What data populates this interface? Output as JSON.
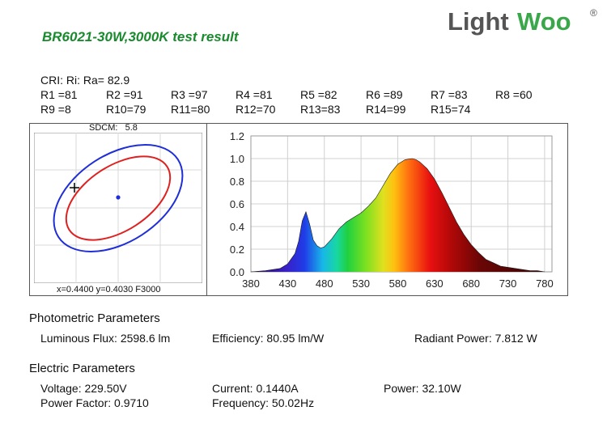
{
  "title": "BR6021-30W,3000K test result",
  "logo": {
    "light": "Light",
    "woo": "Woo",
    "reg": "®"
  },
  "cri": {
    "line": "CRI: Ri: Ra= 82.9",
    "values": [
      "R1 =81",
      "R2 =91",
      "R3 =97",
      "R4 =81",
      "R5 =82",
      "R6 =89",
      "R7 =83",
      "R8 =60",
      "R9 =8",
      "R10=79",
      "R11=80",
      "R12=70",
      "R13=83",
      "R14=99",
      "R15=74"
    ]
  },
  "sdcm": {
    "label": "SDCM:",
    "value": "5.8"
  },
  "coords": "x=0.4400  y=0.4030 F3000",
  "photometric": {
    "heading": "Photometric Parameters",
    "flux": "Luminous Flux: 2598.6 lm",
    "efficiency": "Efficiency: 80.95 lm/W",
    "radiant": "Radiant Power: 7.812 W"
  },
  "electric": {
    "heading": "Electric Parameters",
    "voltage": "Voltage: 229.50V",
    "current": "Current: 0.1440A",
    "power": "Power: 32.10W",
    "pf": "Power Factor: 0.9710",
    "frequency": "Frequency: 50.02Hz"
  },
  "colors": {
    "outer_ellipse": "#1f2ed6",
    "inner_ellipse": "#e02020",
    "point": "#1f2ed6"
  },
  "chart_data": {
    "type": "area",
    "x": [
      380,
      400,
      420,
      430,
      440,
      445,
      450,
      455,
      460,
      465,
      470,
      475,
      480,
      490,
      500,
      510,
      520,
      530,
      540,
      550,
      560,
      570,
      580,
      590,
      600,
      605,
      610,
      620,
      630,
      640,
      650,
      660,
      670,
      680,
      690,
      700,
      710,
      720,
      730,
      740,
      750,
      760,
      770,
      780
    ],
    "y": [
      0,
      0.01,
      0.03,
      0.07,
      0.16,
      0.27,
      0.45,
      0.53,
      0.42,
      0.28,
      0.23,
      0.21,
      0.22,
      0.29,
      0.38,
      0.44,
      0.48,
      0.52,
      0.58,
      0.65,
      0.76,
      0.87,
      0.95,
      0.99,
      1.0,
      0.99,
      0.97,
      0.91,
      0.82,
      0.7,
      0.57,
      0.44,
      0.33,
      0.24,
      0.17,
      0.11,
      0.08,
      0.05,
      0.04,
      0.03,
      0.02,
      0.01,
      0.01,
      0.0
    ],
    "x_ticks": [
      "380",
      "430",
      "480",
      "530",
      "580",
      "630",
      "680",
      "730",
      "780"
    ],
    "y_ticks": [
      "0.0",
      "0.2",
      "0.4",
      "0.6",
      "0.8",
      "1.0",
      "1.2"
    ],
    "xlim": [
      380,
      790
    ],
    "ylim": [
      0,
      1.2
    ],
    "grid": true
  }
}
